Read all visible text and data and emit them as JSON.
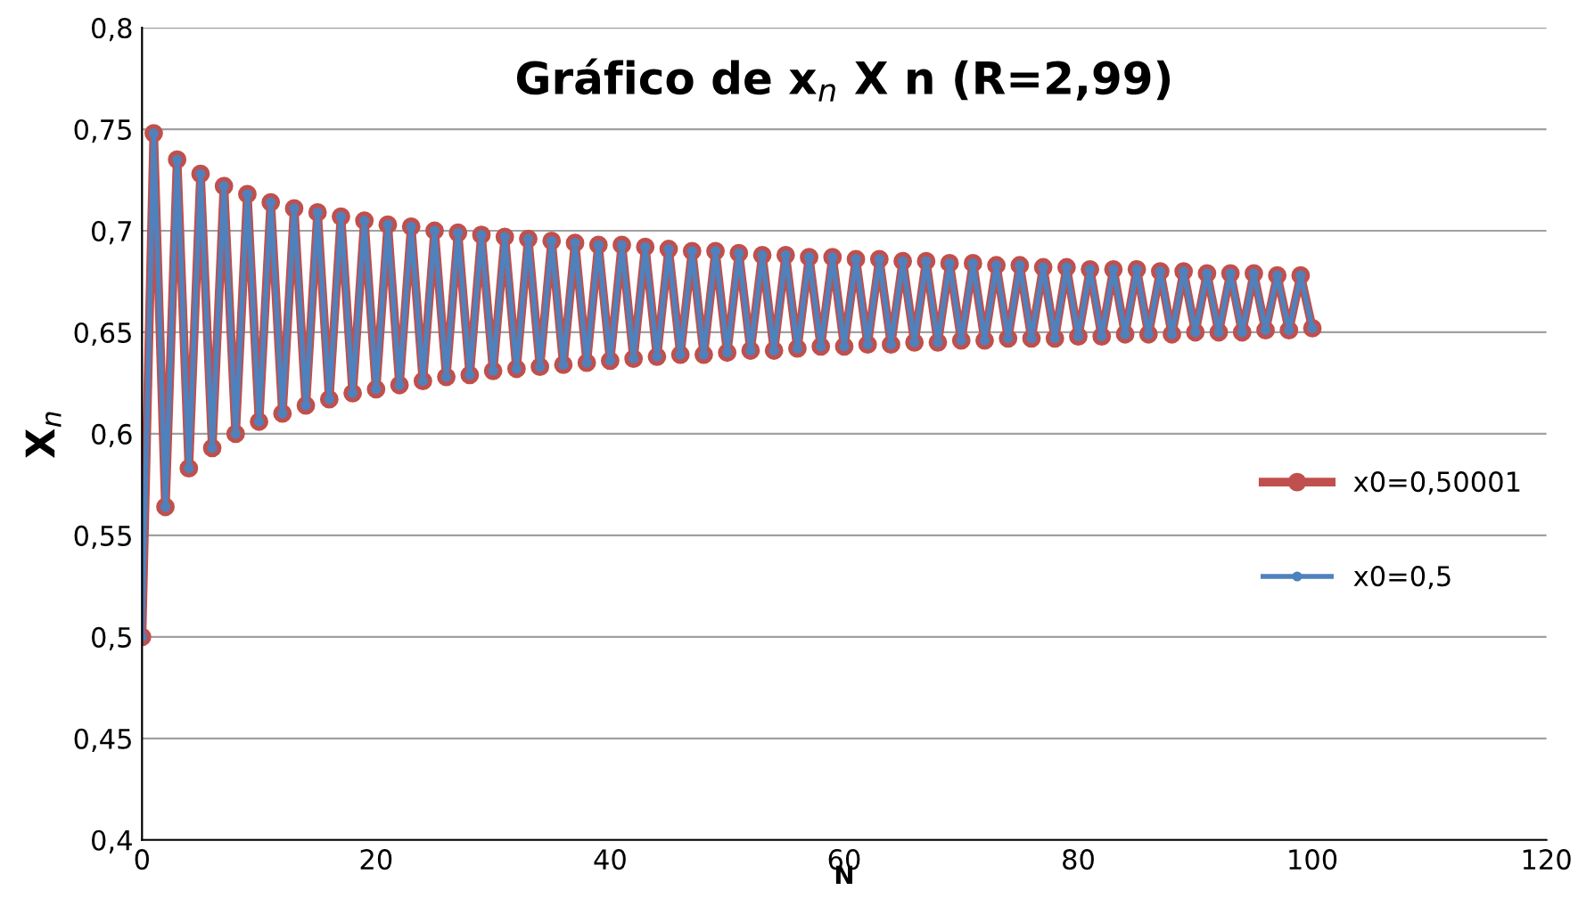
{
  "chart_data": {
    "type": "line",
    "title": "Gráfico de x$_{n}$ X n (R=2,99)",
    "xlabel": "N",
    "ylabel": "X$_{n}$",
    "x": [
      0,
      1,
      2,
      3,
      4,
      5,
      6,
      7,
      8,
      9,
      10,
      11,
      12,
      13,
      14,
      15,
      16,
      17,
      18,
      19,
      20,
      21,
      22,
      23,
      24,
      25,
      26,
      27,
      28,
      29,
      30,
      31,
      32,
      33,
      34,
      35,
      36,
      37,
      38,
      39,
      40,
      41,
      42,
      43,
      44,
      45,
      46,
      47,
      48,
      49,
      50,
      51,
      52,
      53,
      54,
      55,
      56,
      57,
      58,
      59,
      60,
      61,
      62,
      63,
      64,
      65,
      66,
      67,
      68,
      69,
      70,
      71,
      72,
      73,
      74,
      75,
      76,
      77,
      78,
      79,
      80,
      81,
      82,
      83,
      84,
      85,
      86,
      87,
      88,
      89,
      90,
      91,
      92,
      93,
      94,
      95,
      96,
      97,
      98,
      99,
      100
    ],
    "series": [
      {
        "name": "x0=0,50001",
        "color": "#c0504d",
        "values": [
          0.5,
          0.748,
          0.564,
          0.735,
          0.583,
          0.728,
          0.593,
          0.722,
          0.6,
          0.718,
          0.606,
          0.714,
          0.61,
          0.711,
          0.614,
          0.709,
          0.617,
          0.707,
          0.62,
          0.705,
          0.622,
          0.703,
          0.624,
          0.702,
          0.626,
          0.7,
          0.628,
          0.699,
          0.629,
          0.698,
          0.631,
          0.697,
          0.632,
          0.696,
          0.633,
          0.695,
          0.634,
          0.694,
          0.635,
          0.693,
          0.636,
          0.693,
          0.637,
          0.692,
          0.638,
          0.691,
          0.639,
          0.69,
          0.639,
          0.69,
          0.64,
          0.689,
          0.641,
          0.688,
          0.641,
          0.688,
          0.642,
          0.687,
          0.643,
          0.687,
          0.643,
          0.686,
          0.644,
          0.686,
          0.644,
          0.685,
          0.645,
          0.685,
          0.645,
          0.684,
          0.646,
          0.684,
          0.646,
          0.683,
          0.647,
          0.683,
          0.647,
          0.682,
          0.647,
          0.682,
          0.648,
          0.681,
          0.648,
          0.681,
          0.649,
          0.681,
          0.649,
          0.68,
          0.649,
          0.68,
          0.65,
          0.679,
          0.65,
          0.679,
          0.65,
          0.679,
          0.651,
          0.678,
          0.651,
          0.678,
          0.652
        ]
      },
      {
        "name": "x0=0,5",
        "color": "#4f81bd",
        "values": [
          0.5,
          0.748,
          0.564,
          0.735,
          0.583,
          0.728,
          0.593,
          0.722,
          0.6,
          0.718,
          0.606,
          0.714,
          0.61,
          0.711,
          0.614,
          0.709,
          0.617,
          0.707,
          0.62,
          0.705,
          0.622,
          0.703,
          0.624,
          0.702,
          0.626,
          0.7,
          0.628,
          0.699,
          0.629,
          0.698,
          0.631,
          0.697,
          0.632,
          0.696,
          0.633,
          0.695,
          0.634,
          0.694,
          0.635,
          0.693,
          0.636,
          0.693,
          0.637,
          0.692,
          0.638,
          0.691,
          0.639,
          0.69,
          0.639,
          0.69,
          0.64,
          0.689,
          0.641,
          0.688,
          0.641,
          0.688,
          0.642,
          0.687,
          0.643,
          0.687,
          0.643,
          0.686,
          0.644,
          0.686,
          0.644,
          0.685,
          0.645,
          0.685,
          0.645,
          0.684,
          0.646,
          0.684,
          0.646,
          0.683,
          0.647,
          0.683,
          0.647,
          0.682,
          0.647,
          0.682,
          0.648,
          0.681,
          0.648,
          0.681,
          0.649,
          0.681,
          0.649,
          0.68,
          0.649,
          0.68,
          0.65,
          0.679,
          0.65,
          0.679,
          0.65,
          0.679,
          0.651,
          0.678,
          0.651,
          0.678,
          0.652
        ]
      }
    ],
    "xlim": [
      0,
      120
    ],
    "xticks": [
      0,
      20,
      40,
      60,
      80,
      100,
      120
    ],
    "ylim": [
      0.4,
      0.8
    ],
    "yticks": [
      {
        "value": 0.4,
        "label": "0,4"
      },
      {
        "value": 0.45,
        "label": "0,45"
      },
      {
        "value": 0.5,
        "label": "0,5"
      },
      {
        "value": 0.55,
        "label": "0,55"
      },
      {
        "value": 0.6,
        "label": "0,6"
      },
      {
        "value": 0.65,
        "label": "0,65"
      },
      {
        "value": 0.7,
        "label": "0,7"
      },
      {
        "value": 0.75,
        "label": "0,75"
      },
      {
        "value": 0.8,
        "label": "0,8"
      }
    ],
    "grid": "y",
    "legend": "right",
    "marker": "circle",
    "line_style": "solid"
  }
}
